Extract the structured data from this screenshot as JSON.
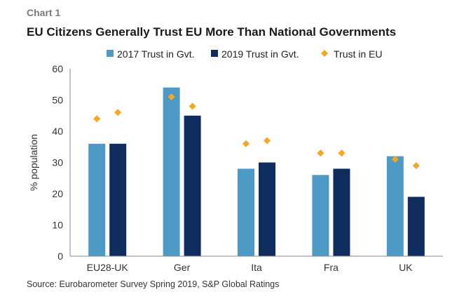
{
  "header": {
    "label": "Chart 1",
    "title": "EU Citizens Generally Trust EU More Than National Governments"
  },
  "footer": {
    "source": "Source: Eurobarometer Survey Spring 2019, S&P Global Ratings"
  },
  "colors": {
    "series2017": "#4e9ac6",
    "series2019": "#0e2d5e",
    "trustEU": "#f5a623",
    "axis": "#888888"
  },
  "chart_data": {
    "type": "bar",
    "title": "EU Citizens Generally Trust EU More Than National Governments",
    "ylabel": "% population",
    "xlabel": "",
    "ylim": [
      0,
      60
    ],
    "yticks": [
      0,
      10,
      20,
      30,
      40,
      50,
      60
    ],
    "grid": false,
    "legend": "top",
    "categories": [
      "EU28-UK",
      "Ger",
      "Ita",
      "Fra",
      "UK"
    ],
    "series": [
      {
        "name": "2017 Trust in Gvt.",
        "kind": "bar",
        "values": [
          36,
          54,
          28,
          26,
          32
        ]
      },
      {
        "name": "2019 Trust in Gvt.",
        "kind": "bar",
        "values": [
          36,
          45,
          30,
          28,
          19
        ]
      },
      {
        "name": "Trust in EU",
        "kind": "marker",
        "values2017": [
          44,
          51,
          36,
          33,
          31
        ],
        "values2019": [
          46,
          48,
          37,
          33,
          29
        ]
      }
    ]
  }
}
